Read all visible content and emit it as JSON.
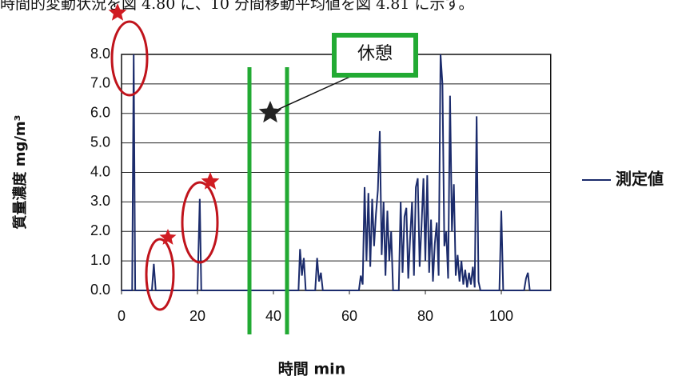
{
  "document": {
    "text": "時間的変動状況を図 4.80 に、10 分間移動平均値を図 4.81 に示す。"
  },
  "chart_data": {
    "type": "line",
    "x_label": "時間 min",
    "y_label": "質量濃度 mg/m³",
    "annotations": [
      "休憩"
    ],
    "x": [
      0,
      2.8,
      3.2,
      3.6,
      8,
      8.5,
      9,
      20,
      20.6,
      21,
      46.6,
      47,
      47.5,
      48,
      48.5,
      51,
      51.5,
      52,
      52.5,
      53,
      62.5,
      63,
      63.5,
      64,
      64.5,
      65,
      65.5,
      66,
      66.5,
      67,
      67.5,
      68,
      68.5,
      69,
      69.5,
      70,
      70.5,
      71,
      71.5,
      73,
      73.5,
      74,
      74.5,
      75,
      75.5,
      76,
      76.5,
      77,
      77.5,
      78,
      78.5,
      79,
      79.5,
      80,
      80.5,
      81,
      81.5,
      82,
      82.5,
      83,
      83.5,
      84,
      84.5,
      85,
      85.5,
      86,
      86.5,
      87,
      87.5,
      88,
      88.5,
      89,
      89.5,
      90,
      90.5,
      91,
      91.5,
      92,
      92.5,
      93,
      93.5,
      94,
      94.5,
      99.5,
      100,
      100.5,
      106,
      106.5,
      107,
      107.5,
      113
    ],
    "series": [
      {
        "name": "測定値",
        "color": "#1c2c6c",
        "values": [
          0,
          0,
          8.0,
          0,
          0,
          0.9,
          0,
          0,
          3.1,
          0,
          0,
          1.4,
          0.5,
          1.1,
          0,
          0,
          1.1,
          0.3,
          0.6,
          0,
          0,
          0.5,
          0.2,
          3.5,
          1.0,
          3.3,
          0.8,
          3.1,
          1.5,
          2.6,
          3.4,
          5.4,
          1.2,
          3.0,
          0.5,
          2.7,
          1.0,
          2.0,
          0,
          0,
          3.0,
          0.6,
          2.5,
          2.8,
          0.4,
          1.8,
          3.0,
          0.5,
          3.5,
          3.8,
          0.8,
          2.2,
          3.8,
          1.0,
          3.9,
          0.6,
          2.4,
          0.3,
          1.6,
          2.3,
          0.5,
          8.0,
          7.0,
          1.5,
          2.0,
          0.4,
          6.6,
          2.0,
          3.6,
          0.5,
          1.2,
          0.3,
          1.0,
          0.2,
          0.7,
          0.1,
          0.6,
          0.2,
          0.8,
          0.1,
          5.9,
          0.3,
          0,
          0,
          2.7,
          0,
          0,
          0.4,
          0.6,
          0,
          0
        ]
      }
    ],
    "xlim": [
      0,
      113
    ],
    "ylim": [
      0,
      8
    ],
    "xticks": [
      0,
      20,
      40,
      60,
      80,
      100
    ],
    "yticks": [
      {
        "value": 0,
        "label": "0.0"
      },
      {
        "value": 1,
        "label": "1.0"
      },
      {
        "value": 2,
        "label": "2.0"
      },
      {
        "value": 3,
        "label": "3.0"
      },
      {
        "value": 4,
        "label": "4.0"
      },
      {
        "value": 5,
        "label": "5.0"
      },
      {
        "value": 6,
        "label": "6.0"
      },
      {
        "value": 7,
        "label": "7.0"
      },
      {
        "value": 8,
        "label": "8.0"
      }
    ],
    "grid": true,
    "legend": "right"
  }
}
